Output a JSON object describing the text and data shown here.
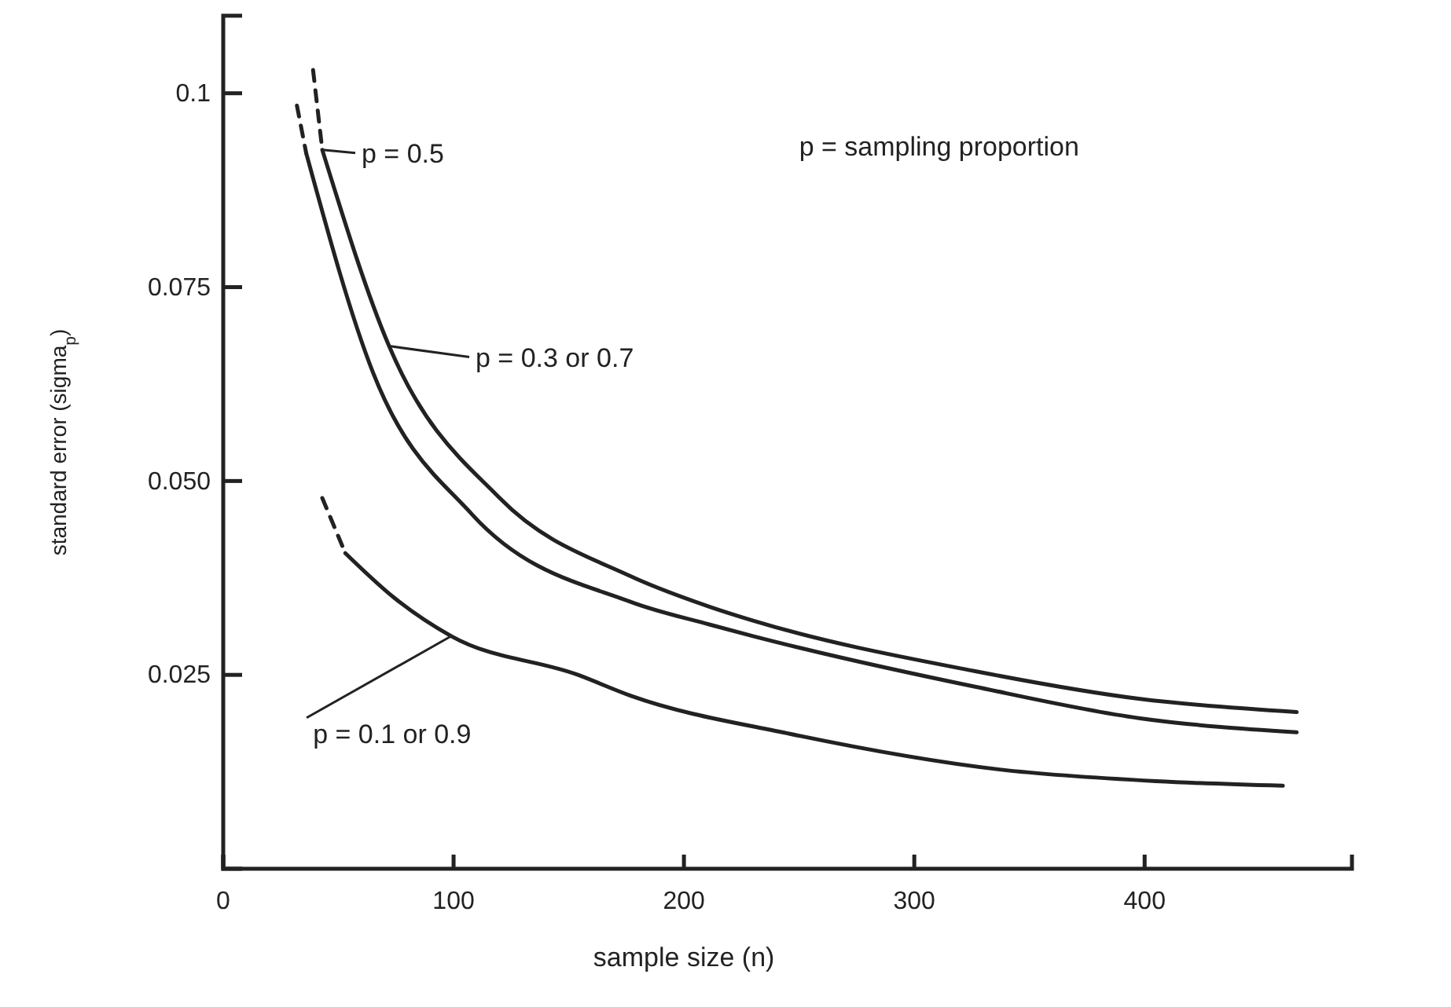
{
  "chart_data": {
    "type": "line",
    "xlabel": "sample size (n)",
    "ylabel": "standard error (sigma$_{p}$)",
    "xlim": [
      0,
      490
    ],
    "ylim": [
      0,
      0.11
    ],
    "xticks": [
      0,
      100,
      200,
      300,
      400
    ],
    "yticks": [
      {
        "value": 0.025,
        "label": "0.025"
      },
      {
        "value": 0.05,
        "label": "0.050"
      },
      {
        "value": 0.075,
        "label": "0.075"
      },
      {
        "value": 0.1,
        "label": "0.1"
      }
    ],
    "series": [
      {
        "color": "#222222",
        "line_style": "dashed",
        "x": [
          39,
          43
        ],
        "values": [
          0.103,
          0.0927
        ]
      },
      {
        "color": "#222222",
        "line_style": "solid",
        "x": [
          43,
          72,
          120,
          177,
          211,
          230,
          326,
          398,
          466
        ],
        "values": [
          0.0927,
          0.0674,
          0.0478,
          0.0377,
          0.0338,
          0.032,
          0.0255,
          0.0219,
          0.0202
        ]
      },
      {
        "color": "#222222",
        "line_style": "dashed",
        "x": [
          32,
          36
        ],
        "values": [
          0.0984,
          0.0923
        ]
      },
      {
        "color": "#222222",
        "line_style": "solid",
        "x": [
          36,
          65,
          108,
          177,
          211,
          230,
          326,
          398,
          466
        ],
        "values": [
          0.0923,
          0.064,
          0.0457,
          0.0344,
          0.0315,
          0.03,
          0.0235,
          0.0194,
          0.0176
        ]
      },
      {
        "color": "#222222",
        "line_style": "dashed",
        "x": [
          43,
          53
        ],
        "values": [
          0.0478,
          0.0407
        ]
      },
      {
        "color": "#222222",
        "line_style": "solid",
        "x": [
          53,
          74,
          99,
          154,
          177,
          246,
          337,
          405,
          460
        ],
        "values": [
          0.0407,
          0.035,
          0.03,
          0.025,
          0.0223,
          0.0174,
          0.0128,
          0.0113,
          0.0107
        ]
      }
    ],
    "annotations": [
      {
        "text": "p = 0.5",
        "x": 43,
        "y": 0.0927
      },
      {
        "text": "p = 0.3 or 0.7",
        "x": 72,
        "y": 0.0674
      },
      {
        "text": "p = 0.1 or 0.9",
        "x": 99,
        "y": 0.03
      },
      "p = sampling proportion"
    ]
  }
}
